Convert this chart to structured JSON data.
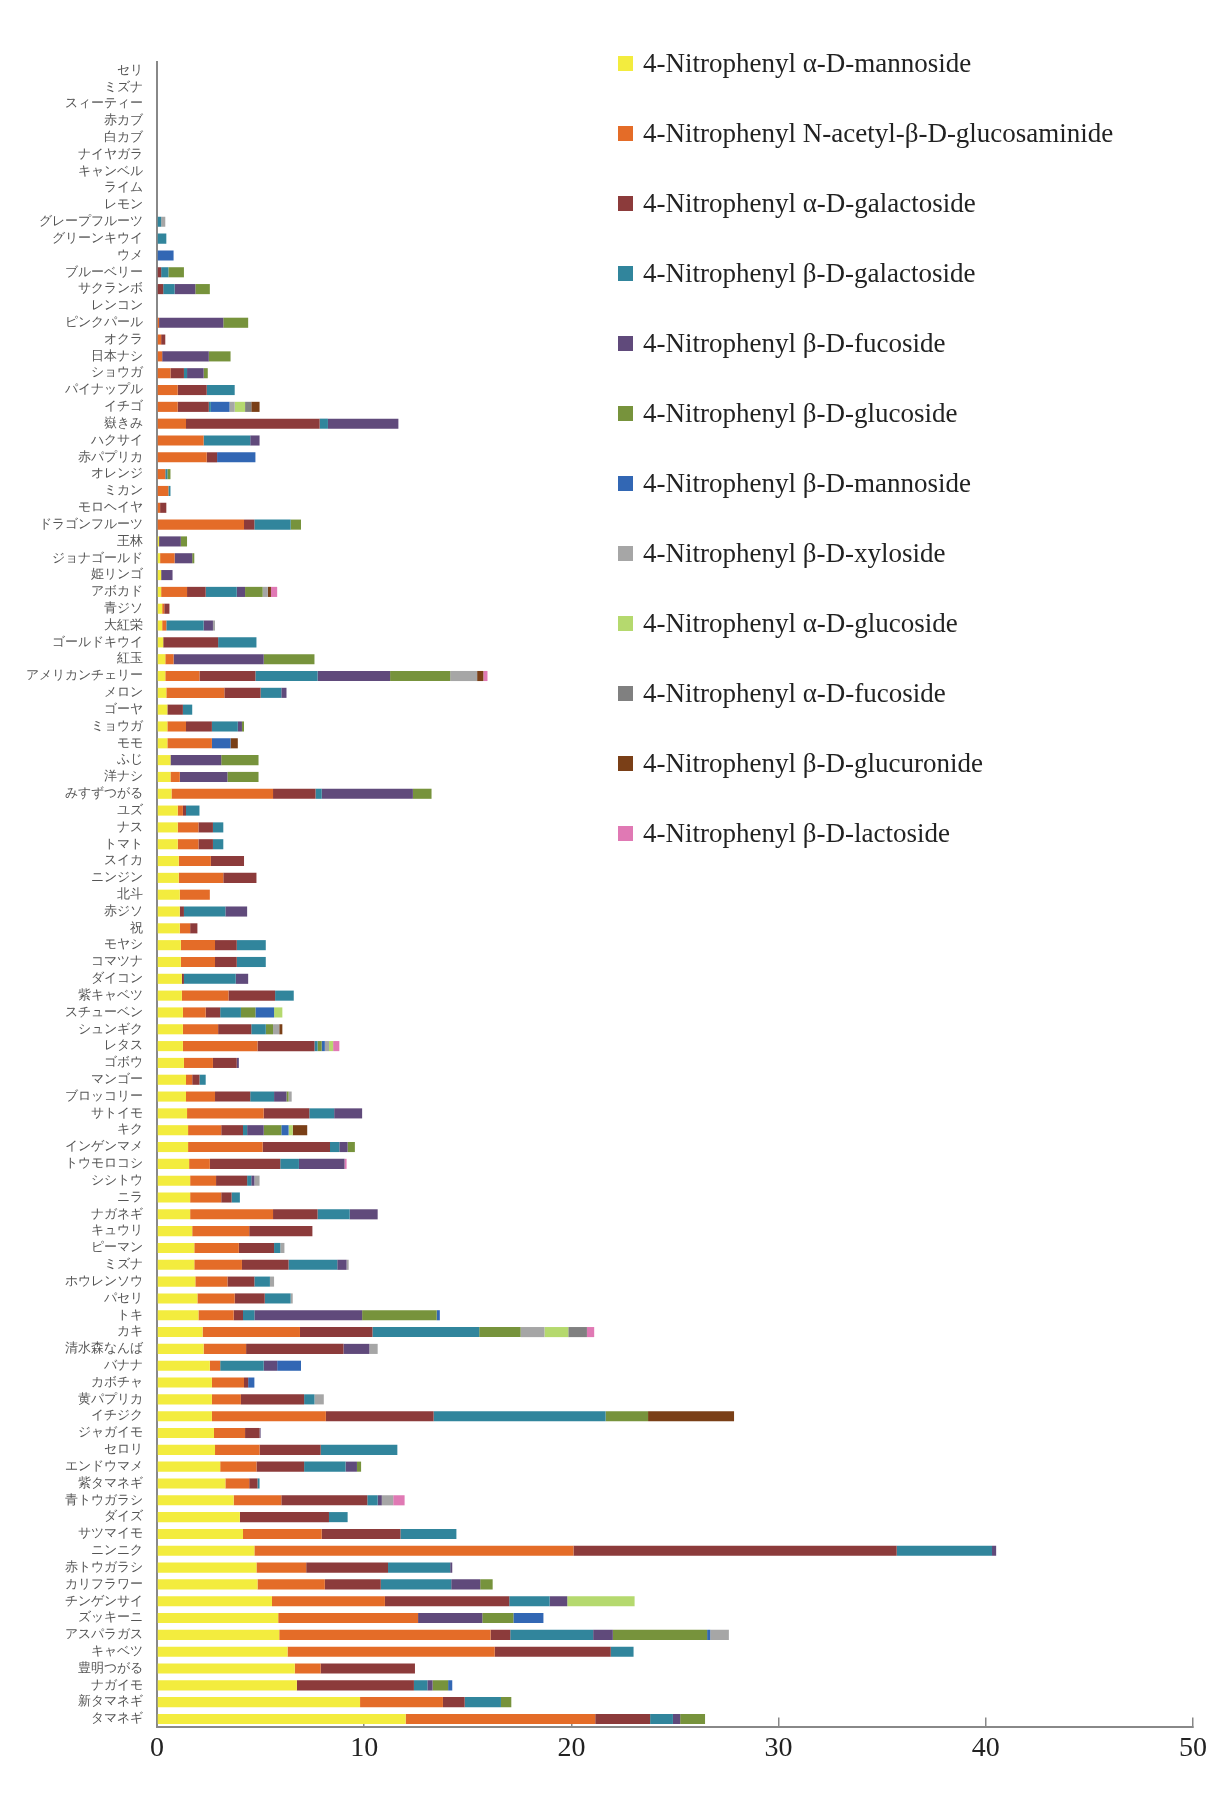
{
  "chart_data": {
    "type": "bar",
    "orientation": "horizontal",
    "stacked": true,
    "legend": "top right",
    "categories": [
      "セリ",
      "ミズナ",
      "スィーティー",
      "赤カブ",
      "白カブ",
      "ナイヤガラ",
      "キャンベル",
      "ライム",
      "レモン",
      "グレープフルーツ",
      "グリーンキウイ",
      "ウメ",
      "ブルーベリー",
      "サクランボ",
      "レンコン",
      "ピンクパール",
      "オクラ",
      "日本ナシ",
      "ショウガ",
      "パイナップル",
      "イチゴ",
      "嶽きみ",
      "ハクサイ",
      "赤パプリカ",
      "オレンジ",
      "ミカン",
      "モロヘイヤ",
      "ドラゴンフルーツ",
      "王林",
      "ジョナゴールド",
      "姫リンゴ",
      "アボカド",
      "青ジソ",
      "大紅栄",
      "ゴールドキウイ",
      "紅玉",
      "アメリカンチェリー",
      "メロン",
      "ゴーヤ",
      "ミョウガ",
      "モモ",
      "ふじ",
      "洋ナシ",
      "みすずつがる",
      "ユズ",
      "ナス",
      "トマト",
      "スイカ",
      "ニンジン",
      "北斗",
      "赤ジソ",
      "祝",
      "モヤシ",
      "コマツナ",
      "ダイコン",
      "紫キャベツ",
      "スチューベン",
      "シュンギク",
      "レタス",
      "ゴボウ",
      "マンゴー",
      "ブロッコリー",
      "サトイモ",
      "キク",
      "インゲンマメ",
      "トウモロコシ",
      "シシトウ",
      "ニラ",
      "ナガネギ",
      "キュウリ",
      "ピーマン",
      "ミズナ",
      "ホウレンソウ",
      "パセリ",
      "トキ",
      "カキ",
      "清水森なんば",
      "バナナ",
      "カボチャ",
      "黄パプリカ",
      "イチジク",
      "ジャガイモ",
      "セロリ",
      "エンドウマメ",
      "紫タマネギ",
      "青トウガラシ",
      "ダイズ",
      "サツマイモ",
      "ニンニク",
      "赤トウガラシ",
      "カリフラワー",
      "チンゲンサイ",
      "ズッキーニ",
      "アスパラガス",
      "キャベツ",
      "豊明つがる",
      "ナガイモ",
      "新タマネギ",
      "タマネギ"
    ],
    "series": [
      {
        "name": "4-Nitrophenyl α-D-mannoside",
        "color": "#f3ec3e",
        "values": [
          0,
          0,
          0,
          0,
          0,
          0,
          0,
          0,
          0,
          0,
          0,
          0,
          0,
          0,
          0,
          0,
          0,
          0,
          0,
          0,
          0,
          0,
          0,
          0,
          0,
          0,
          0,
          0,
          0.1,
          0.15,
          0.2,
          0.2,
          0.25,
          0.25,
          0.3,
          0.4,
          0.4,
          0.45,
          0.5,
          0.5,
          0.5,
          0.65,
          0.65,
          0.7,
          1.0,
          1.0,
          1.0,
          1.05,
          1.05,
          1.1,
          1.1,
          1.1,
          1.15,
          1.15,
          1.2,
          1.2,
          1.25,
          1.25,
          1.25,
          1.3,
          1.4,
          1.4,
          1.45,
          1.5,
          1.5,
          1.55,
          1.6,
          1.6,
          1.6,
          1.7,
          1.8,
          1.8,
          1.85,
          1.95,
          2.0,
          2.2,
          2.25,
          2.55,
          2.65,
          2.65,
          2.65,
          2.75,
          2.8,
          3.05,
          3.3,
          3.7,
          4.0,
          4.15,
          4.7,
          4.8,
          4.85,
          5.55,
          5.85,
          5.9,
          6.3,
          6.65,
          6.75,
          9.8,
          12.0
        ]
      },
      {
        "name": "4-Nitrophenyl N-acetyl-β-D-glucosaminide",
        "color": "#e46c28",
        "values": [
          0,
          0,
          0,
          0,
          0,
          0,
          0,
          0,
          0,
          0,
          0,
          0,
          0,
          0,
          0,
          0.1,
          0.2,
          0.25,
          0.65,
          1.0,
          1.0,
          1.4,
          2.25,
          2.4,
          0.4,
          0.55,
          0.15,
          4.2,
          0,
          0.7,
          0,
          1.25,
          0.1,
          0.2,
          0,
          0.4,
          1.65,
          2.8,
          0,
          0.9,
          2.15,
          0,
          0.45,
          4.9,
          0.25,
          1.0,
          1.0,
          1.55,
          2.15,
          1.45,
          0,
          0.5,
          1.65,
          1.65,
          0,
          2.25,
          1.1,
          1.7,
          3.6,
          1.4,
          0.3,
          1.4,
          3.7,
          1.6,
          3.6,
          1.0,
          1.25,
          1.5,
          4.0,
          2.75,
          2.15,
          2.3,
          1.55,
          1.8,
          1.7,
          4.7,
          2.05,
          0.5,
          1.55,
          1.4,
          5.5,
          1.5,
          2.15,
          1.75,
          1.15,
          2.3,
          0,
          3.8,
          15.4,
          2.4,
          3.25,
          5.45,
          6.75,
          10.2,
          10.0,
          1.25,
          0,
          4.0,
          9.15
        ]
      },
      {
        "name": "4-Nitrophenyl α-D-galactoside",
        "color": "#8c3b3b",
        "values": [
          0,
          0,
          0,
          0,
          0,
          0,
          0,
          0,
          0,
          0,
          0,
          0,
          0.2,
          0.3,
          0,
          0,
          0.2,
          0,
          0.65,
          1.4,
          1.5,
          6.45,
          0,
          0.5,
          0,
          0,
          0.3,
          0.5,
          0,
          0,
          0,
          0.9,
          0.25,
          0,
          2.65,
          0,
          2.7,
          1.75,
          0.75,
          1.25,
          0,
          0,
          0,
          2.05,
          0.15,
          0.7,
          0.7,
          1.6,
          1.6,
          0,
          0.2,
          0.35,
          1.05,
          1.05,
          0.1,
          2.25,
          0.7,
          1.6,
          2.75,
          1.15,
          0.35,
          1.7,
          2.2,
          1.05,
          3.25,
          3.4,
          1.5,
          0.5,
          2.15,
          3.05,
          1.7,
          2.25,
          1.3,
          1.45,
          0.45,
          3.5,
          4.7,
          0,
          0.2,
          3.05,
          5.2,
          0.7,
          2.95,
          2.3,
          0.4,
          4.15,
          4.3,
          3.8,
          15.6,
          3.95,
          2.7,
          6.0,
          0,
          0.95,
          5.6,
          4.55,
          5.65,
          1.05,
          2.65
        ]
      },
      {
        "name": "4-Nitrophenyl β-D-galactoside",
        "color": "#31859c",
        "values": [
          0,
          0,
          0,
          0,
          0,
          0,
          0,
          0,
          0,
          0.2,
          0.45,
          0,
          0.35,
          0.55,
          0,
          0,
          0,
          0,
          0.15,
          1.35,
          0.1,
          0.4,
          2.25,
          0,
          0.1,
          0.1,
          0,
          1.75,
          0,
          0,
          0,
          1.5,
          0,
          1.8,
          1.85,
          0,
          3.0,
          1.0,
          0.45,
          1.25,
          0,
          0,
          0,
          0.3,
          0.65,
          0.5,
          0.5,
          0,
          0,
          0,
          2.0,
          0,
          1.4,
          1.4,
          2.5,
          0.9,
          1.0,
          0.7,
          0.15,
          0,
          0.3,
          1.15,
          1.2,
          0.2,
          0.45,
          0.9,
          0.2,
          0.4,
          1.55,
          0,
          0.3,
          2.35,
          0.75,
          1.25,
          0.55,
          5.15,
          0,
          2.1,
          0,
          0.5,
          8.3,
          0,
          3.7,
          2.0,
          0.1,
          0.5,
          0.9,
          2.7,
          4.6,
          3.0,
          3.4,
          1.95,
          0,
          4.0,
          1.1,
          0,
          0.65,
          1.75,
          1.1
        ]
      },
      {
        "name": "4-Nitrophenyl β-D-fucoside",
        "color": "#604a7b",
        "values": [
          0,
          0,
          0,
          0,
          0,
          0,
          0,
          0,
          0,
          0,
          0,
          0,
          0,
          1.0,
          0,
          3.1,
          0,
          2.25,
          0.8,
          0,
          0,
          3.4,
          0.45,
          0,
          0,
          0,
          0,
          0,
          1.05,
          0.85,
          0.55,
          0.4,
          0,
          0.45,
          0,
          4.35,
          3.5,
          0.25,
          0,
          0.2,
          0,
          2.45,
          2.3,
          4.4,
          0,
          0,
          0,
          0,
          0,
          0,
          1.05,
          0,
          0,
          0,
          0.6,
          0,
          0,
          0,
          0,
          0.1,
          0,
          0.6,
          1.35,
          0.8,
          0.4,
          2.2,
          0.15,
          0,
          1.35,
          0,
          0,
          0.45,
          0,
          0,
          5.2,
          0,
          1.25,
          0.65,
          0,
          0,
          0,
          0.05,
          0,
          0.55,
          0,
          0.2,
          0,
          0,
          0.2,
          0.1,
          1.4,
          0.85,
          3.1,
          0.95,
          0,
          0,
          0.25,
          0,
          0.35
        ]
      },
      {
        "name": "4-Nitrophenyl β-D-glucoside",
        "color": "#77933c",
        "values": [
          0,
          0,
          0,
          0,
          0,
          0,
          0,
          0,
          0,
          0,
          0,
          0,
          0.75,
          0.7,
          0,
          1.2,
          0,
          1.05,
          0.2,
          0,
          0,
          0,
          0,
          0,
          0.15,
          0,
          0,
          0.5,
          0.3,
          0.1,
          0,
          0.85,
          0,
          0,
          0,
          2.45,
          2.9,
          0,
          0,
          0.1,
          0,
          1.8,
          1.5,
          0.9,
          0,
          0,
          0,
          0,
          0,
          0,
          0,
          0,
          0,
          0,
          0,
          0,
          0.7,
          0.35,
          0.2,
          0,
          0,
          0.1,
          0,
          0.85,
          0.35,
          0,
          0,
          0,
          0,
          0,
          0,
          0,
          0,
          0,
          3.6,
          2.0,
          0,
          0,
          0,
          0,
          2.05,
          0,
          0,
          0.2,
          0,
          0,
          0,
          0,
          0,
          0,
          0.6,
          0,
          1.5,
          4.55,
          0,
          0,
          0.75,
          0.5,
          1.2
        ]
      },
      {
        "name": "4-Nitrophenyl β-D-mannoside",
        "color": "#3267b4",
        "values": [
          0,
          0,
          0,
          0,
          0,
          0,
          0,
          0,
          0,
          0,
          0,
          0.8,
          0,
          0,
          0,
          0,
          0,
          0,
          0,
          0,
          0.9,
          0,
          0,
          1.85,
          0,
          0,
          0,
          0,
          0,
          0,
          0,
          0,
          0,
          0,
          0,
          0,
          0,
          0,
          0,
          0,
          0.9,
          0,
          0,
          0,
          0,
          0,
          0,
          0,
          0,
          0,
          0,
          0,
          0,
          0,
          0,
          0,
          0.9,
          0,
          0.15,
          0,
          0,
          0,
          0,
          0.35,
          0,
          0,
          0,
          0,
          0,
          0,
          0,
          0,
          0,
          0,
          0.15,
          0,
          0,
          1.15,
          0.3,
          0,
          0,
          0,
          0,
          0,
          0,
          0,
          0,
          0,
          0,
          0,
          0,
          0,
          1.45,
          0.15,
          0,
          0,
          0.2,
          0,
          0
        ]
      },
      {
        "name": "4-Nitrophenyl β-D-xyloside",
        "color": "#a6a6a6",
        "values": [
          0,
          0,
          0,
          0,
          0,
          0,
          0,
          0,
          0,
          0.2,
          0,
          0,
          0,
          0,
          0,
          0,
          0,
          0,
          0,
          0,
          0.25,
          0,
          0,
          0,
          0,
          0,
          0,
          0,
          0,
          0,
          0,
          0.25,
          0,
          0.1,
          0,
          0,
          1.3,
          0,
          0,
          0,
          0,
          0,
          0,
          0,
          0,
          0,
          0,
          0,
          0,
          0,
          0,
          0,
          0,
          0,
          0,
          0,
          0,
          0.3,
          0.2,
          0,
          0,
          0.15,
          0,
          0,
          0,
          0,
          0.25,
          0,
          0,
          0,
          0.2,
          0.1,
          0.2,
          0.1,
          0,
          1.15,
          0.4,
          0,
          0,
          0.45,
          0,
          0,
          0,
          0,
          0,
          0.55,
          0,
          0,
          0,
          0,
          0,
          0,
          0,
          0.9,
          0,
          0,
          0,
          0,
          0
        ]
      },
      {
        "name": "4-Nitrophenyl α-D-glucoside",
        "color": "#b5d96e",
        "values": [
          0,
          0,
          0,
          0,
          0,
          0,
          0,
          0,
          0,
          0,
          0,
          0,
          0,
          0,
          0,
          0,
          0,
          0,
          0,
          0,
          0.5,
          0,
          0,
          0,
          0,
          0,
          0,
          0,
          0,
          0,
          0,
          0,
          0,
          0,
          0,
          0,
          0,
          0,
          0,
          0,
          0,
          0,
          0,
          0,
          0,
          0,
          0,
          0,
          0,
          0,
          0,
          0,
          0,
          0,
          0,
          0,
          0.4,
          0,
          0.2,
          0,
          0,
          0,
          0,
          0.2,
          0,
          0,
          0,
          0,
          0,
          0,
          0,
          0,
          0,
          0,
          0,
          1.15,
          0,
          0,
          0,
          0,
          0,
          0,
          0,
          0,
          0,
          0,
          0,
          0,
          0,
          0,
          0,
          3.25,
          0,
          0,
          0,
          0,
          0,
          0,
          0
        ]
      },
      {
        "name": "4-Nitrophenyl α-D-fucoside",
        "color": "#808080",
        "values": [
          0,
          0,
          0,
          0,
          0,
          0,
          0,
          0,
          0,
          0,
          0,
          0,
          0,
          0,
          0,
          0,
          0,
          0,
          0,
          0,
          0.3,
          0,
          0,
          0,
          0,
          0,
          0,
          0,
          0,
          0,
          0,
          0,
          0,
          0,
          0,
          0,
          0,
          0,
          0,
          0,
          0,
          0,
          0,
          0,
          0,
          0,
          0,
          0,
          0,
          0,
          0,
          0,
          0,
          0,
          0,
          0,
          0,
          0,
          0,
          0,
          0,
          0,
          0,
          0,
          0,
          0,
          0,
          0,
          0,
          0,
          0,
          0,
          0,
          0,
          0,
          0.9,
          0,
          0,
          0,
          0,
          0,
          0,
          0,
          0,
          0,
          0,
          0,
          0,
          0,
          0,
          0,
          0,
          0,
          0,
          0,
          0,
          0,
          0,
          0
        ]
      },
      {
        "name": "4-Nitrophenyl β-D-glucuronide",
        "color": "#7a3f17",
        "values": [
          0,
          0,
          0,
          0,
          0,
          0,
          0,
          0,
          0,
          0,
          0,
          0,
          0,
          0,
          0,
          0,
          0,
          0,
          0,
          0,
          0.4,
          0,
          0,
          0,
          0,
          0,
          0,
          0,
          0,
          0,
          0,
          0.15,
          0,
          0,
          0,
          0,
          0.3,
          0,
          0,
          0,
          0.35,
          0,
          0,
          0,
          0,
          0,
          0,
          0,
          0,
          0,
          0,
          0,
          0,
          0,
          0,
          0,
          0,
          0.15,
          0,
          0,
          0,
          0,
          0,
          0.7,
          0,
          0,
          0,
          0,
          0,
          0,
          0,
          0,
          0,
          0,
          0,
          0,
          0,
          0,
          0,
          0,
          4.15,
          0,
          0,
          0,
          0,
          0,
          0,
          0,
          0,
          0,
          0,
          0,
          0,
          0,
          0,
          0,
          0,
          0,
          0
        ]
      },
      {
        "name": "4-Nitrophenyl β-D-lactoside",
        "color": "#e079b4",
        "values": [
          0,
          0,
          0,
          0,
          0,
          0,
          0,
          0,
          0,
          0,
          0,
          0,
          0,
          0,
          0,
          0,
          0,
          0,
          0,
          0,
          0,
          0,
          0,
          0,
          0,
          0,
          0,
          0,
          0,
          0,
          0,
          0.3,
          0,
          0,
          0,
          0,
          0.2,
          0,
          0,
          0,
          0,
          0,
          0,
          0,
          0,
          0,
          0,
          0,
          0,
          0,
          0,
          0,
          0,
          0,
          0,
          0,
          0,
          0,
          0.3,
          0,
          0,
          0,
          0,
          0,
          0,
          0.1,
          0,
          0,
          0,
          0,
          0,
          0,
          0,
          0,
          0,
          0.35,
          0,
          0,
          0,
          0,
          0,
          0,
          0,
          0,
          0,
          0.55,
          0,
          0,
          0,
          0,
          0,
          0,
          0,
          0,
          0,
          0,
          0,
          0,
          0
        ]
      }
    ],
    "xlim": [
      0,
      50
    ],
    "xticks": [
      0,
      10,
      20,
      30,
      40,
      50
    ]
  }
}
